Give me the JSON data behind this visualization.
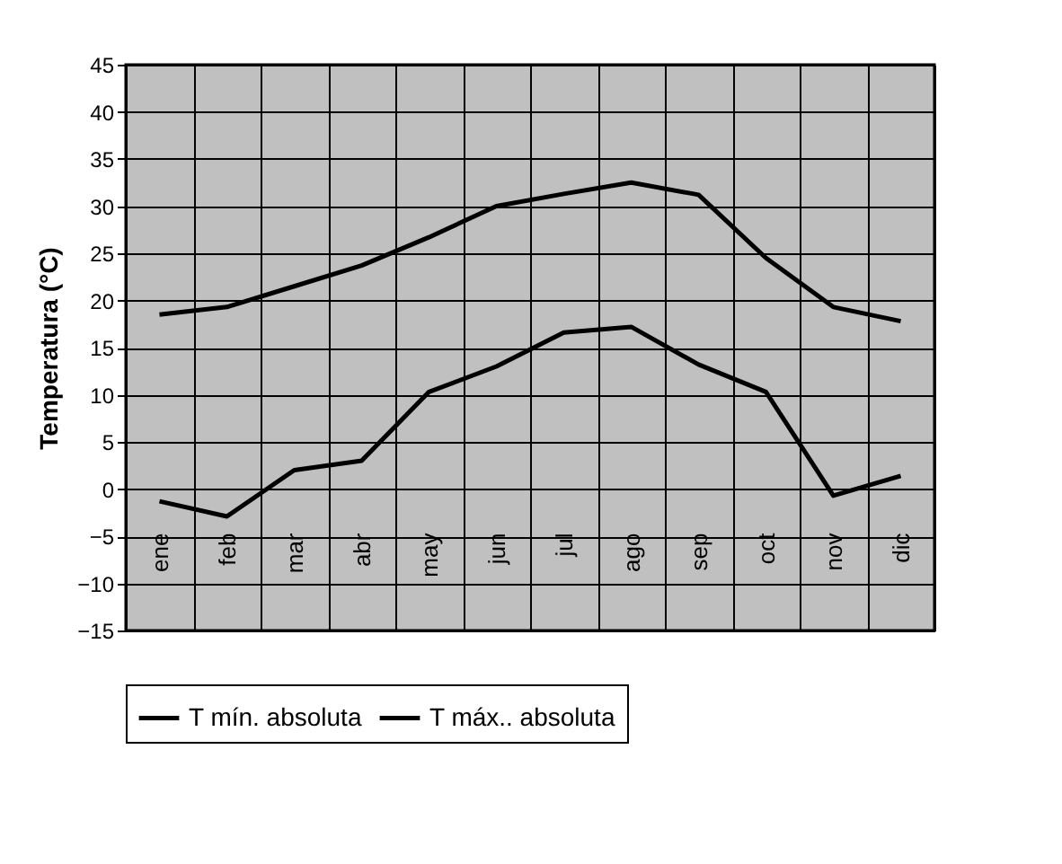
{
  "chart_data": {
    "type": "line",
    "ylabel": "Temperatura (°C)",
    "categories": [
      "ene",
      "feb",
      "mar",
      "abr",
      "may",
      "jun",
      "jul",
      "ago",
      "sep",
      "oct",
      "nov",
      "dic"
    ],
    "series": [
      {
        "name": "T mín. absoluta",
        "color": "#000000",
        "values": [
          -1.3,
          -2.9,
          2.0,
          3.0,
          10.3,
          13.0,
          16.6,
          17.2,
          13.2,
          10.3,
          -0.7,
          1.4
        ]
      },
      {
        "name": "T máx.. absoluta",
        "color": "#000000",
        "values": [
          18.5,
          19.3,
          21.5,
          23.7,
          26.7,
          30.0,
          31.3,
          32.5,
          31.2,
          24.5,
          19.3,
          17.8
        ]
      }
    ],
    "ylim": [
      -15,
      45
    ],
    "yticks": [
      -15,
      -10,
      -5,
      0,
      5,
      10,
      15,
      20,
      25,
      30,
      35,
      40,
      45
    ],
    "grid": true,
    "legend": "bottom",
    "marker": "none",
    "line_style": "solid"
  }
}
